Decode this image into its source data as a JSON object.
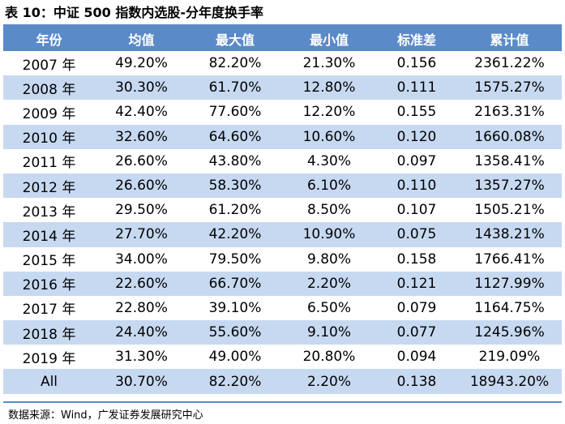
{
  "caption": "表 10：中证 500 指数内选股-分年度换手率",
  "columns": [
    "年份",
    "均值",
    "最大值",
    "最小值",
    "标准差",
    "累计值"
  ],
  "rows": [
    [
      "2007 年",
      "49.20%",
      "82.20%",
      "21.30%",
      "0.156",
      "2361.22%"
    ],
    [
      "2008 年",
      "30.30%",
      "61.70%",
      "12.80%",
      "0.111",
      "1575.27%"
    ],
    [
      "2009 年",
      "42.40%",
      "77.60%",
      "12.20%",
      "0.155",
      "2163.31%"
    ],
    [
      "2010 年",
      "32.60%",
      "64.60%",
      "10.60%",
      "0.120",
      "1660.08%"
    ],
    [
      "2011 年",
      "26.60%",
      "43.80%",
      "4.30%",
      "0.097",
      "1358.41%"
    ],
    [
      "2012 年",
      "26.60%",
      "58.30%",
      "6.10%",
      "0.110",
      "1357.27%"
    ],
    [
      "2013 年",
      "29.50%",
      "61.20%",
      "8.50%",
      "0.107",
      "1505.21%"
    ],
    [
      "2014 年",
      "27.70%",
      "42.20%",
      "10.90%",
      "0.075",
      "1438.21%"
    ],
    [
      "2015 年",
      "34.00%",
      "79.50%",
      "9.80%",
      "0.158",
      "1766.41%"
    ],
    [
      "2016 年",
      "22.60%",
      "66.70%",
      "2.20%",
      "0.121",
      "1127.99%"
    ],
    [
      "2017 年",
      "22.80%",
      "39.10%",
      "6.50%",
      "0.079",
      "1164.75%"
    ],
    [
      "2018 年",
      "24.40%",
      "55.60%",
      "9.10%",
      "0.077",
      "1245.96%"
    ],
    [
      "2019 年",
      "31.30%",
      "49.00%",
      "20.80%",
      "0.094",
      "219.09%"
    ],
    [
      "All",
      "30.70%",
      "82.20%",
      "2.20%",
      "0.138",
      "18943.20%"
    ]
  ],
  "source": "数据来源：Wind，广发证券发展研究中心",
  "colors": {
    "header_bg": "#5b8ac8",
    "header_text": "#ffffff",
    "stripe_bg": "#c7d9f1"
  }
}
